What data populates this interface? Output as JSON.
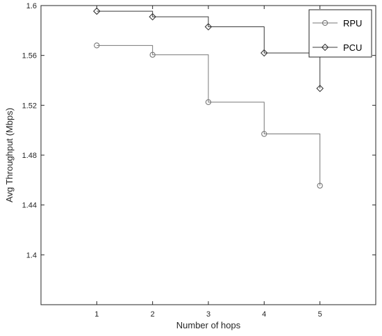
{
  "chart_data": {
    "type": "line",
    "step": true,
    "xlabel": "Number of hops",
    "ylabel": "Avg Throughput (Mbps)",
    "xlim": [
      0,
      6
    ],
    "ylim": [
      1.36,
      1.6
    ],
    "xticks": [
      "1",
      "2",
      "3",
      "4",
      "5"
    ],
    "yticks": [
      "1.4",
      "1.44",
      "1.48",
      "1.52",
      "1.56",
      "1.6"
    ],
    "grid": false,
    "legend_position": "top-right",
    "x": [
      1,
      2,
      3,
      4,
      5
    ],
    "series": [
      {
        "name": "RPU",
        "marker": "circle",
        "color": "#777777",
        "values": [
          1.568,
          1.5605,
          1.5225,
          1.497,
          1.4555
        ]
      },
      {
        "name": "PCU",
        "marker": "diamond",
        "color": "#3a3a3a",
        "values": [
          1.5955,
          1.591,
          1.583,
          1.562,
          1.5335
        ]
      }
    ]
  }
}
